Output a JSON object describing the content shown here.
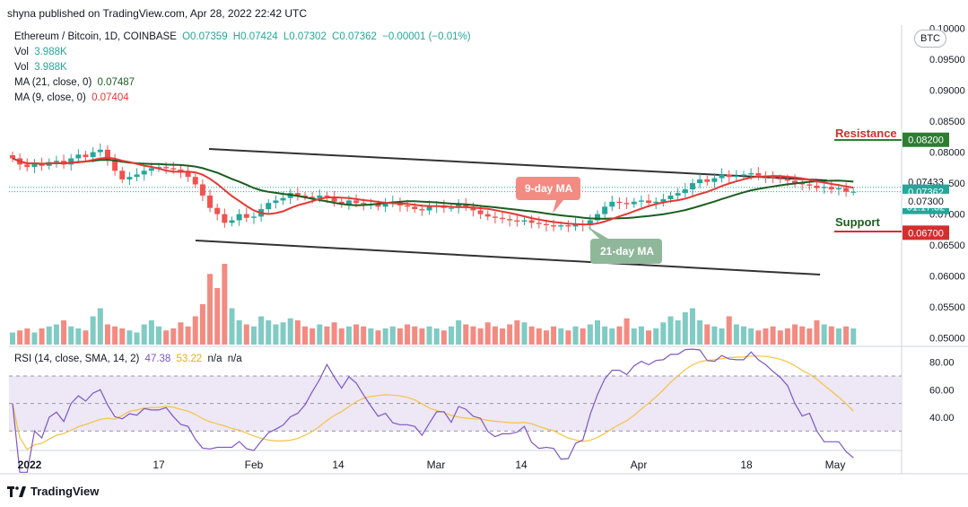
{
  "header": {
    "published": "shyna published on TradingView.com, Apr 28, 2022 22:42 UTC"
  },
  "legend": {
    "symbol": "Ethereum / Bitcoin, 1D, COINBASE",
    "ohlc": {
      "o": "O0.07359",
      "h": "H0.07424",
      "l": "L0.07302",
      "c": "C0.07362",
      "chg": "−0.00001 (−0.01%)"
    },
    "vol1": {
      "label": "Vol",
      "value": "3.988K"
    },
    "vol2": {
      "label": "Vol",
      "value": "3.988K"
    },
    "ma21": {
      "label": "MA (21, close, 0)",
      "value": "0.07487"
    },
    "ma9": {
      "label": "MA (9, close, 0)",
      "value": "0.07404"
    }
  },
  "currency_badge": "BTC",
  "annotations": {
    "resistance": "Resistance",
    "support": "Support",
    "ma9_tag": "9-day MA",
    "ma21_tag": "21-day MA"
  },
  "rsi_legend": {
    "label": "RSI (14, close, SMA, 14, 2)",
    "rsi": "47.38",
    "sma": "53.22",
    "na1": "n/a",
    "na2": "n/a"
  },
  "footer": {
    "brand": "TradingView"
  },
  "colors": {
    "up": "#26a69a",
    "down": "#ef5350",
    "ma9": "#e53935",
    "ma21": "#1b5e20",
    "rsi": "#7e57c2",
    "rsi_sma": "#f5c242",
    "rsi_band": "#ede7f6",
    "resistance": "#2e7d32",
    "support": "#d32f2f",
    "channel": "#333333"
  },
  "chart_data": {
    "type": "candlestick",
    "price_ticks": [
      "0.05000",
      "0.05500",
      "0.06000",
      "0.06500",
      "0.07000",
      "0.07500",
      "0.08000",
      "0.08500",
      "0.09000",
      "0.09500",
      "0.10000"
    ],
    "price_labels": [
      {
        "text": "0.08200",
        "value": 0.082,
        "bg": "#2e7d32",
        "fg": "#ffffff"
      },
      {
        "text": "0.07433",
        "value": 0.07433,
        "bg": "#ffffff",
        "fg": "#131722"
      },
      {
        "text": "0.07362",
        "value": 0.07362,
        "bg": "#26a69a",
        "fg": "#ffffff"
      },
      {
        "text": "01:17:32",
        "value": 0.07362,
        "bg": "#26a69a",
        "fg": "#ffffff",
        "sub": true
      },
      {
        "text": "0.07300",
        "value": 0.073,
        "bg": "#ffffff",
        "fg": "#131722"
      },
      {
        "text": "0.06700",
        "value": 0.067,
        "bg": "#d32f2f",
        "fg": "#ffffff"
      }
    ],
    "x_labels": [
      "2022",
      "17",
      "Feb",
      "14",
      "Mar",
      "14",
      "Apr",
      "18",
      "May"
    ],
    "rsi_ticks": [
      "40.00",
      "60.00",
      "80.00"
    ],
    "resistance_level": 0.082,
    "support_level": 0.067,
    "channel_upper": [
      [
        0.0824,
        0.0764
      ],
      [
        0.0748,
        0.0734
      ]
    ],
    "closes": [
      0.079,
      0.078,
      0.0776,
      0.0782,
      0.0778,
      0.0784,
      0.0786,
      0.078,
      0.079,
      0.0796,
      0.0792,
      0.08,
      0.0804,
      0.0788,
      0.077,
      0.0756,
      0.076,
      0.0764,
      0.077,
      0.0774,
      0.0776,
      0.0774,
      0.0772,
      0.0768,
      0.076,
      0.0748,
      0.073,
      0.071,
      0.07,
      0.0686,
      0.069,
      0.07,
      0.0694,
      0.0696,
      0.0708,
      0.0718,
      0.0722,
      0.0726,
      0.0734,
      0.073,
      0.0728,
      0.0726,
      0.073,
      0.0728,
      0.072,
      0.0716,
      0.0722,
      0.0718,
      0.0716,
      0.0716,
      0.0712,
      0.0718,
      0.072,
      0.0714,
      0.0712,
      0.0708,
      0.0706,
      0.0712,
      0.0714,
      0.071,
      0.071,
      0.0716,
      0.0712,
      0.0706,
      0.07,
      0.0696,
      0.0694,
      0.0692,
      0.069,
      0.0688,
      0.069,
      0.0686,
      0.0684,
      0.0682,
      0.068,
      0.0682,
      0.068,
      0.0684,
      0.0682,
      0.069,
      0.07,
      0.0712,
      0.072,
      0.0718,
      0.0716,
      0.072,
      0.0722,
      0.0718,
      0.072,
      0.0724,
      0.073,
      0.0734,
      0.074,
      0.075,
      0.0756,
      0.0752,
      0.0758,
      0.0764,
      0.076,
      0.0762,
      0.0764,
      0.0766,
      0.0762,
      0.076,
      0.0758,
      0.0756,
      0.0754,
      0.075,
      0.0748,
      0.0746,
      0.0742,
      0.0744,
      0.074,
      0.0742,
      0.0736,
      0.0736
    ],
    "volumes": [
      6,
      7,
      8,
      6,
      8,
      9,
      10,
      12,
      9,
      8,
      7,
      14,
      18,
      10,
      9,
      8,
      7,
      6,
      10,
      12,
      9,
      7,
      8,
      11,
      9,
      14,
      20,
      35,
      28,
      40,
      18,
      12,
      10,
      9,
      14,
      12,
      10,
      11,
      13,
      12,
      9,
      8,
      10,
      9,
      11,
      8,
      9,
      10,
      9,
      8,
      7,
      8,
      9,
      8,
      10,
      9,
      8,
      9,
      8,
      7,
      9,
      12,
      10,
      9,
      8,
      11,
      9,
      8,
      10,
      12,
      11,
      9,
      8,
      7,
      9,
      8,
      7,
      9,
      8,
      10,
      12,
      9,
      8,
      9,
      13,
      8,
      9,
      7,
      8,
      11,
      14,
      12,
      16,
      18,
      12,
      10,
      9,
      8,
      14,
      10,
      9,
      8,
      7,
      8,
      9,
      7,
      8,
      10,
      9,
      8,
      12,
      10,
      9,
      8,
      9,
      8
    ]
  }
}
